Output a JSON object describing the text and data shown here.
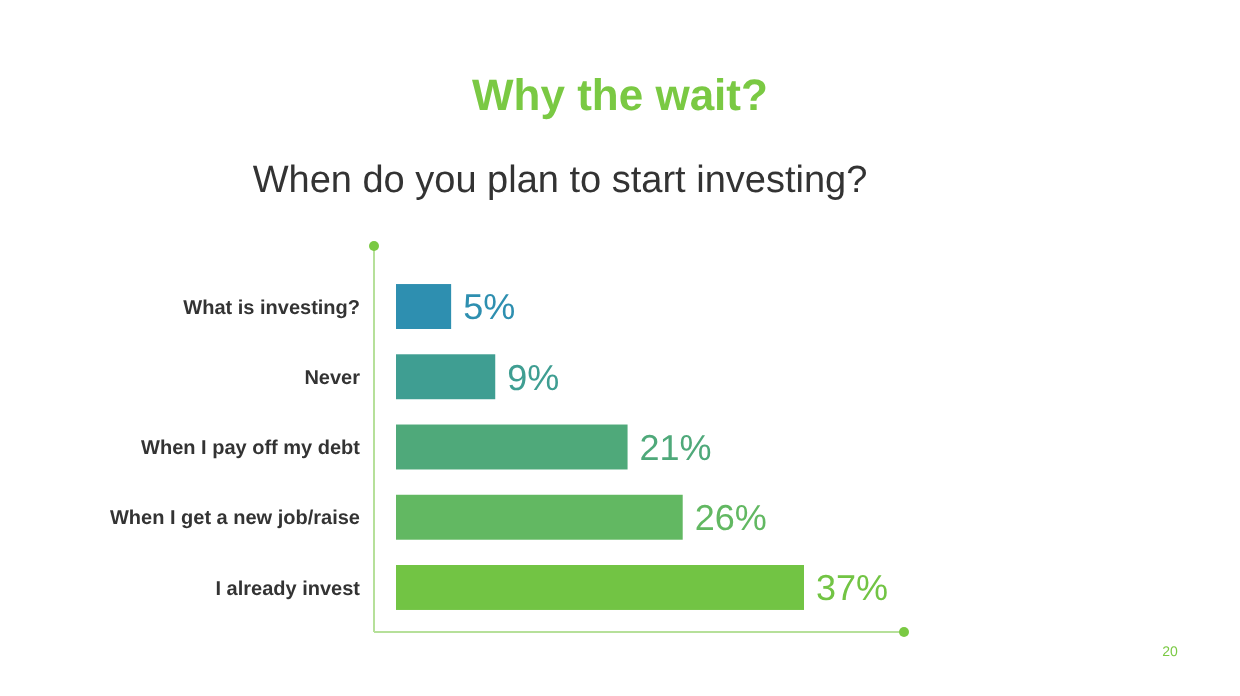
{
  "chart_data": {
    "type": "bar",
    "orientation": "horizontal",
    "title": "Why the wait?",
    "subtitle": "When do you plan to start investing?",
    "categories": [
      "What is investing?",
      "Never",
      "When I pay off my debt",
      "When I get a new job/raise",
      "I already invest"
    ],
    "values": [
      5,
      9,
      21,
      26,
      37
    ],
    "colors": [
      "#2e8fb0",
      "#3f9e92",
      "#4fa97a",
      "#62b862",
      "#72c444"
    ],
    "value_labels": [
      "5%",
      "9%",
      "21%",
      "26%",
      "37%"
    ],
    "annotations": [
      "20"
    ]
  }
}
